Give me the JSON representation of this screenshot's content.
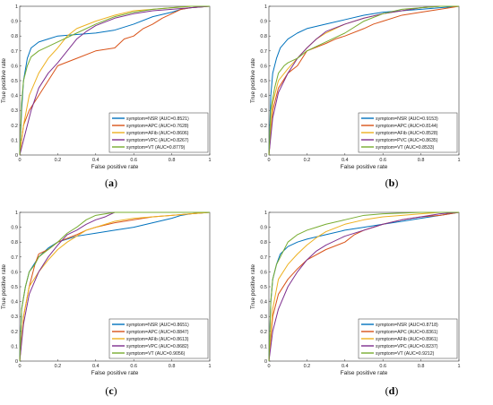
{
  "colors": {
    "NSR": "#0072BD",
    "APC": "#D95319",
    "AFib": "#EDB120",
    "VPC": "#7E2F8E",
    "VT": "#77AC30",
    "axis": "#333333",
    "background": "#ffffff"
  },
  "chart_data": [
    {
      "type": "line",
      "panel_label": "(a)",
      "xlabel": "False positive rate",
      "ylabel": "True positive rate",
      "xlim": [
        0,
        1
      ],
      "ylim": [
        0,
        1
      ],
      "xticks": [
        "0",
        "0.2",
        "0.4",
        "0.6",
        "0.8",
        "1"
      ],
      "yticks": [
        "0",
        "0.1",
        "0.2",
        "0.3",
        "0.4",
        "0.5",
        "0.6",
        "0.7",
        "0.8",
        "0.9",
        "1"
      ],
      "grid": false,
      "legend_position": "bottom-right",
      "series": [
        {
          "name": "symptom=NSR (AUC=0.8521)",
          "key": "NSR",
          "x": [
            0,
            0.01,
            0.02,
            0.04,
            0.06,
            0.1,
            0.15,
            0.2,
            0.3,
            0.4,
            0.5,
            0.6,
            0.7,
            0.8,
            0.85,
            0.9,
            1
          ],
          "y": [
            0,
            0.3,
            0.5,
            0.65,
            0.72,
            0.76,
            0.78,
            0.8,
            0.81,
            0.82,
            0.84,
            0.88,
            0.93,
            0.96,
            0.98,
            0.99,
            1
          ]
        },
        {
          "name": "symptom=APC (AUC=0.7628)",
          "key": "APC",
          "x": [
            0,
            0.02,
            0.05,
            0.1,
            0.15,
            0.2,
            0.3,
            0.4,
            0.5,
            0.55,
            0.6,
            0.65,
            0.7,
            0.75,
            0.8,
            0.85,
            0.9,
            1
          ],
          "y": [
            0,
            0.2,
            0.3,
            0.4,
            0.5,
            0.6,
            0.65,
            0.7,
            0.72,
            0.78,
            0.8,
            0.85,
            0.88,
            0.92,
            0.95,
            0.98,
            0.99,
            1
          ]
        },
        {
          "name": "symptom=AFib (AUC=0.8606)",
          "key": "AFib",
          "x": [
            0,
            0.02,
            0.05,
            0.1,
            0.15,
            0.2,
            0.25,
            0.3,
            0.4,
            0.5,
            0.6,
            0.7,
            0.8,
            0.9,
            1
          ],
          "y": [
            0,
            0.2,
            0.4,
            0.55,
            0.65,
            0.72,
            0.8,
            0.85,
            0.9,
            0.94,
            0.97,
            0.98,
            0.99,
            1,
            1
          ]
        },
        {
          "name": "symptom=VPC (AUC=0.8267)",
          "key": "VPC",
          "x": [
            0,
            0.03,
            0.06,
            0.1,
            0.15,
            0.2,
            0.25,
            0.3,
            0.35,
            0.4,
            0.5,
            0.6,
            0.7,
            0.8,
            0.9,
            1
          ],
          "y": [
            0,
            0.15,
            0.3,
            0.45,
            0.55,
            0.62,
            0.7,
            0.78,
            0.83,
            0.87,
            0.92,
            0.95,
            0.97,
            0.98,
            0.99,
            1
          ]
        },
        {
          "name": "symptom=VT (AUC=0.8779)",
          "key": "VT",
          "x": [
            0,
            0.01,
            0.02,
            0.04,
            0.06,
            0.1,
            0.15,
            0.2,
            0.3,
            0.4,
            0.5,
            0.6,
            0.7,
            0.8,
            0.9,
            1
          ],
          "y": [
            0,
            0.35,
            0.5,
            0.6,
            0.66,
            0.7,
            0.73,
            0.76,
            0.82,
            0.88,
            0.93,
            0.96,
            0.98,
            0.99,
            1,
            1
          ]
        }
      ]
    },
    {
      "type": "line",
      "panel_label": "(b)",
      "xlabel": "False positive rate",
      "ylabel": "True positive rate",
      "xlim": [
        0,
        1
      ],
      "ylim": [
        0,
        1
      ],
      "xticks": [
        "0",
        "0.2",
        "0.4",
        "0.6",
        "0.8",
        "1"
      ],
      "yticks": [
        "0",
        "0.1",
        "0.2",
        "0.3",
        "0.4",
        "0.5",
        "0.6",
        "0.7",
        "0.8",
        "0.9",
        "1"
      ],
      "grid": false,
      "legend_position": "bottom-right",
      "series": [
        {
          "name": "symptom=NSR (AUC=0.9153)",
          "key": "NSR",
          "x": [
            0,
            0.01,
            0.02,
            0.04,
            0.06,
            0.1,
            0.15,
            0.2,
            0.3,
            0.4,
            0.5,
            0.6,
            0.7,
            0.8,
            0.9,
            1
          ],
          "y": [
            0,
            0.4,
            0.55,
            0.65,
            0.72,
            0.78,
            0.82,
            0.85,
            0.88,
            0.91,
            0.94,
            0.96,
            0.97,
            0.98,
            0.99,
            1
          ]
        },
        {
          "name": "symptom=APC (AUC=0.8144)",
          "key": "APC",
          "x": [
            0,
            0.02,
            0.05,
            0.1,
            0.15,
            0.2,
            0.3,
            0.35,
            0.4,
            0.5,
            0.55,
            0.6,
            0.7,
            0.8,
            0.9,
            1
          ],
          "y": [
            0,
            0.3,
            0.45,
            0.55,
            0.6,
            0.7,
            0.75,
            0.78,
            0.8,
            0.85,
            0.88,
            0.9,
            0.94,
            0.96,
            0.98,
            1
          ]
        },
        {
          "name": "symptom=AFib (AUC=0.8528)",
          "key": "AFib",
          "x": [
            0,
            0.02,
            0.05,
            0.1,
            0.15,
            0.2,
            0.25,
            0.3,
            0.4,
            0.5,
            0.6,
            0.7,
            0.8,
            0.9,
            1
          ],
          "y": [
            0,
            0.35,
            0.5,
            0.58,
            0.65,
            0.72,
            0.78,
            0.82,
            0.88,
            0.92,
            0.95,
            0.97,
            0.99,
            1,
            1
          ]
        },
        {
          "name": "symptom=PVC (AUC=0.8635)",
          "key": "VPC",
          "x": [
            0,
            0.02,
            0.05,
            0.1,
            0.15,
            0.2,
            0.25,
            0.3,
            0.4,
            0.5,
            0.6,
            0.7,
            0.8,
            0.9,
            1
          ],
          "y": [
            0,
            0.25,
            0.42,
            0.55,
            0.65,
            0.72,
            0.78,
            0.83,
            0.88,
            0.92,
            0.95,
            0.97,
            0.99,
            1,
            1
          ]
        },
        {
          "name": "symptom=VT  (AUC=0.8533)",
          "key": "VT",
          "x": [
            0,
            0.01,
            0.03,
            0.05,
            0.08,
            0.1,
            0.15,
            0.2,
            0.3,
            0.4,
            0.5,
            0.6,
            0.7,
            0.8,
            0.9,
            1
          ],
          "y": [
            0,
            0.3,
            0.45,
            0.55,
            0.6,
            0.62,
            0.65,
            0.7,
            0.76,
            0.82,
            0.9,
            0.95,
            0.98,
            0.99,
            1,
            1
          ]
        }
      ]
    },
    {
      "type": "line",
      "panel_label": "(c)",
      "xlabel": "False positive rate",
      "ylabel": "True positive rate",
      "xlim": [
        0,
        1
      ],
      "ylim": [
        0,
        1
      ],
      "xticks": [
        "0",
        "0.2",
        "0.4",
        "0.6",
        "0.8",
        "1"
      ],
      "yticks": [
        "0",
        "0.1",
        "0.2",
        "0.3",
        "0.4",
        "0.5",
        "0.6",
        "0.7",
        "0.8",
        "0.9",
        "1"
      ],
      "grid": false,
      "legend_position": "bottom-right",
      "series": [
        {
          "name": "symptom=NSR (AUC=0.8651)",
          "key": "NSR",
          "x": [
            0,
            0.01,
            0.03,
            0.05,
            0.1,
            0.15,
            0.2,
            0.3,
            0.4,
            0.5,
            0.6,
            0.7,
            0.8,
            0.85,
            0.9,
            1
          ],
          "y": [
            0,
            0.35,
            0.5,
            0.6,
            0.7,
            0.76,
            0.8,
            0.84,
            0.86,
            0.88,
            0.9,
            0.93,
            0.96,
            0.98,
            0.99,
            1
          ]
        },
        {
          "name": "symptom=APC (AUC=0.8847)",
          "key": "APC",
          "x": [
            0,
            0.02,
            0.05,
            0.08,
            0.1,
            0.15,
            0.2,
            0.3,
            0.35,
            0.4,
            0.5,
            0.6,
            0.7,
            0.8,
            0.9,
            1
          ],
          "y": [
            0,
            0.3,
            0.5,
            0.65,
            0.72,
            0.75,
            0.8,
            0.85,
            0.88,
            0.9,
            0.93,
            0.95,
            0.97,
            0.98,
            0.99,
            1
          ]
        },
        {
          "name": "symptom=AFib (AUC=0.8613)",
          "key": "AFib",
          "x": [
            0,
            0.02,
            0.05,
            0.1,
            0.15,
            0.2,
            0.25,
            0.3,
            0.35,
            0.4,
            0.5,
            0.6,
            0.7,
            0.8,
            0.9,
            1
          ],
          "y": [
            0,
            0.3,
            0.5,
            0.6,
            0.68,
            0.75,
            0.8,
            0.84,
            0.88,
            0.9,
            0.94,
            0.96,
            0.97,
            0.98,
            0.99,
            1
          ]
        },
        {
          "name": "symptom=VPC (AUC=0.8682)",
          "key": "VPC",
          "x": [
            0,
            0.02,
            0.05,
            0.1,
            0.15,
            0.2,
            0.25,
            0.3,
            0.35,
            0.4,
            0.45,
            0.5,
            0.6,
            0.7,
            0.8,
            1
          ],
          "y": [
            0,
            0.25,
            0.45,
            0.6,
            0.7,
            0.78,
            0.85,
            0.88,
            0.92,
            0.95,
            0.97,
            1,
            1,
            1,
            1,
            1
          ]
        },
        {
          "name": "symptom=VT  (AUC=0.9056)",
          "key": "VT",
          "x": [
            0,
            0.01,
            0.03,
            0.05,
            0.08,
            0.1,
            0.15,
            0.2,
            0.25,
            0.3,
            0.35,
            0.4,
            0.5,
            0.6,
            0.8,
            1
          ],
          "y": [
            0,
            0.35,
            0.5,
            0.6,
            0.65,
            0.7,
            0.75,
            0.8,
            0.86,
            0.9,
            0.95,
            0.98,
            1,
            1,
            1,
            1
          ]
        }
      ]
    },
    {
      "type": "line",
      "panel_label": "(d)",
      "xlabel": "False positive rate",
      "ylabel": "True positive rate",
      "xlim": [
        0,
        1
      ],
      "ylim": [
        0,
        1
      ],
      "xticks": [
        "0",
        "0.2",
        "0.4",
        "0.6",
        "0.8",
        "1"
      ],
      "yticks": [
        "0",
        "0.1",
        "0.2",
        "0.3",
        "0.4",
        "0.5",
        "0.6",
        "0.7",
        "0.8",
        "0.9",
        "1"
      ],
      "grid": false,
      "legend_position": "bottom-right",
      "series": [
        {
          "name": "symptom=NSR (AUC=0.8718)",
          "key": "NSR",
          "x": [
            0,
            0.01,
            0.02,
            0.04,
            0.06,
            0.1,
            0.15,
            0.2,
            0.3,
            0.4,
            0.5,
            0.6,
            0.7,
            0.8,
            0.9,
            1
          ],
          "y": [
            0,
            0.4,
            0.55,
            0.65,
            0.72,
            0.77,
            0.8,
            0.82,
            0.85,
            0.88,
            0.9,
            0.92,
            0.94,
            0.96,
            0.98,
            1
          ]
        },
        {
          "name": "symptom=APC (AUC=0.8361)",
          "key": "APC",
          "x": [
            0,
            0.02,
            0.05,
            0.1,
            0.15,
            0.2,
            0.3,
            0.4,
            0.45,
            0.5,
            0.55,
            0.6,
            0.7,
            0.8,
            0.9,
            1
          ],
          "y": [
            0,
            0.3,
            0.45,
            0.55,
            0.62,
            0.68,
            0.75,
            0.8,
            0.85,
            0.88,
            0.9,
            0.92,
            0.95,
            0.97,
            0.98,
            1
          ]
        },
        {
          "name": "symptom=AFib (AUC=0.8961)",
          "key": "AFib",
          "x": [
            0,
            0.02,
            0.05,
            0.1,
            0.15,
            0.2,
            0.25,
            0.3,
            0.4,
            0.5,
            0.6,
            0.7,
            0.8,
            0.9,
            1
          ],
          "y": [
            0,
            0.35,
            0.55,
            0.65,
            0.72,
            0.78,
            0.83,
            0.87,
            0.92,
            0.95,
            0.97,
            0.98,
            0.99,
            1,
            1
          ]
        },
        {
          "name": "symptom=VPC (AUC=0.8237)",
          "key": "VPC",
          "x": [
            0,
            0.02,
            0.05,
            0.1,
            0.15,
            0.2,
            0.25,
            0.3,
            0.4,
            0.5,
            0.6,
            0.7,
            0.8,
            0.9,
            1
          ],
          "y": [
            0,
            0.2,
            0.35,
            0.5,
            0.6,
            0.68,
            0.74,
            0.78,
            0.84,
            0.88,
            0.92,
            0.95,
            0.97,
            0.99,
            1
          ]
        },
        {
          "name": "symptom=VT  (AUC=0.9212)",
          "key": "VT",
          "x": [
            0,
            0.01,
            0.02,
            0.04,
            0.06,
            0.08,
            0.1,
            0.15,
            0.2,
            0.25,
            0.3,
            0.4,
            0.5,
            0.6,
            0.8,
            1
          ],
          "y": [
            0,
            0.4,
            0.55,
            0.65,
            0.7,
            0.75,
            0.8,
            0.85,
            0.88,
            0.9,
            0.92,
            0.95,
            0.98,
            0.99,
            1,
            1
          ]
        }
      ]
    }
  ]
}
